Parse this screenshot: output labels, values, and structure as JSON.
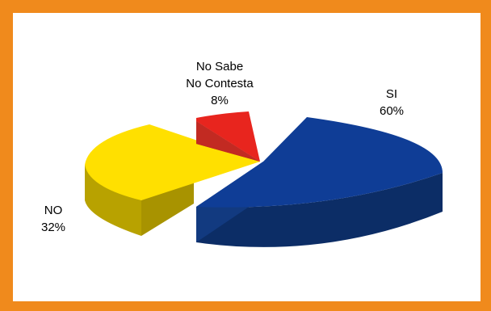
{
  "colors": {
    "frame": "#f08a1c",
    "panel": "#ffffff"
  },
  "chart_data": {
    "type": "pie",
    "style": "3d-exploded",
    "title": "",
    "slices": [
      {
        "name": "SI",
        "label": "SI",
        "value": 60,
        "value_label": "60%",
        "color": "#0f3d96",
        "side": "#0c2d66"
      },
      {
        "name": "NO",
        "label": "NO",
        "value": 32,
        "value_label": "32%",
        "color": "#ffe000",
        "side": "#b8a200"
      },
      {
        "name": "No Sabe No Contesta",
        "label_lines": [
          "No Sabe",
          "No Contesta"
        ],
        "value": 8,
        "value_label": "8%",
        "color": "#e8251e",
        "side": "#a8201b"
      }
    ],
    "legend": "none"
  }
}
